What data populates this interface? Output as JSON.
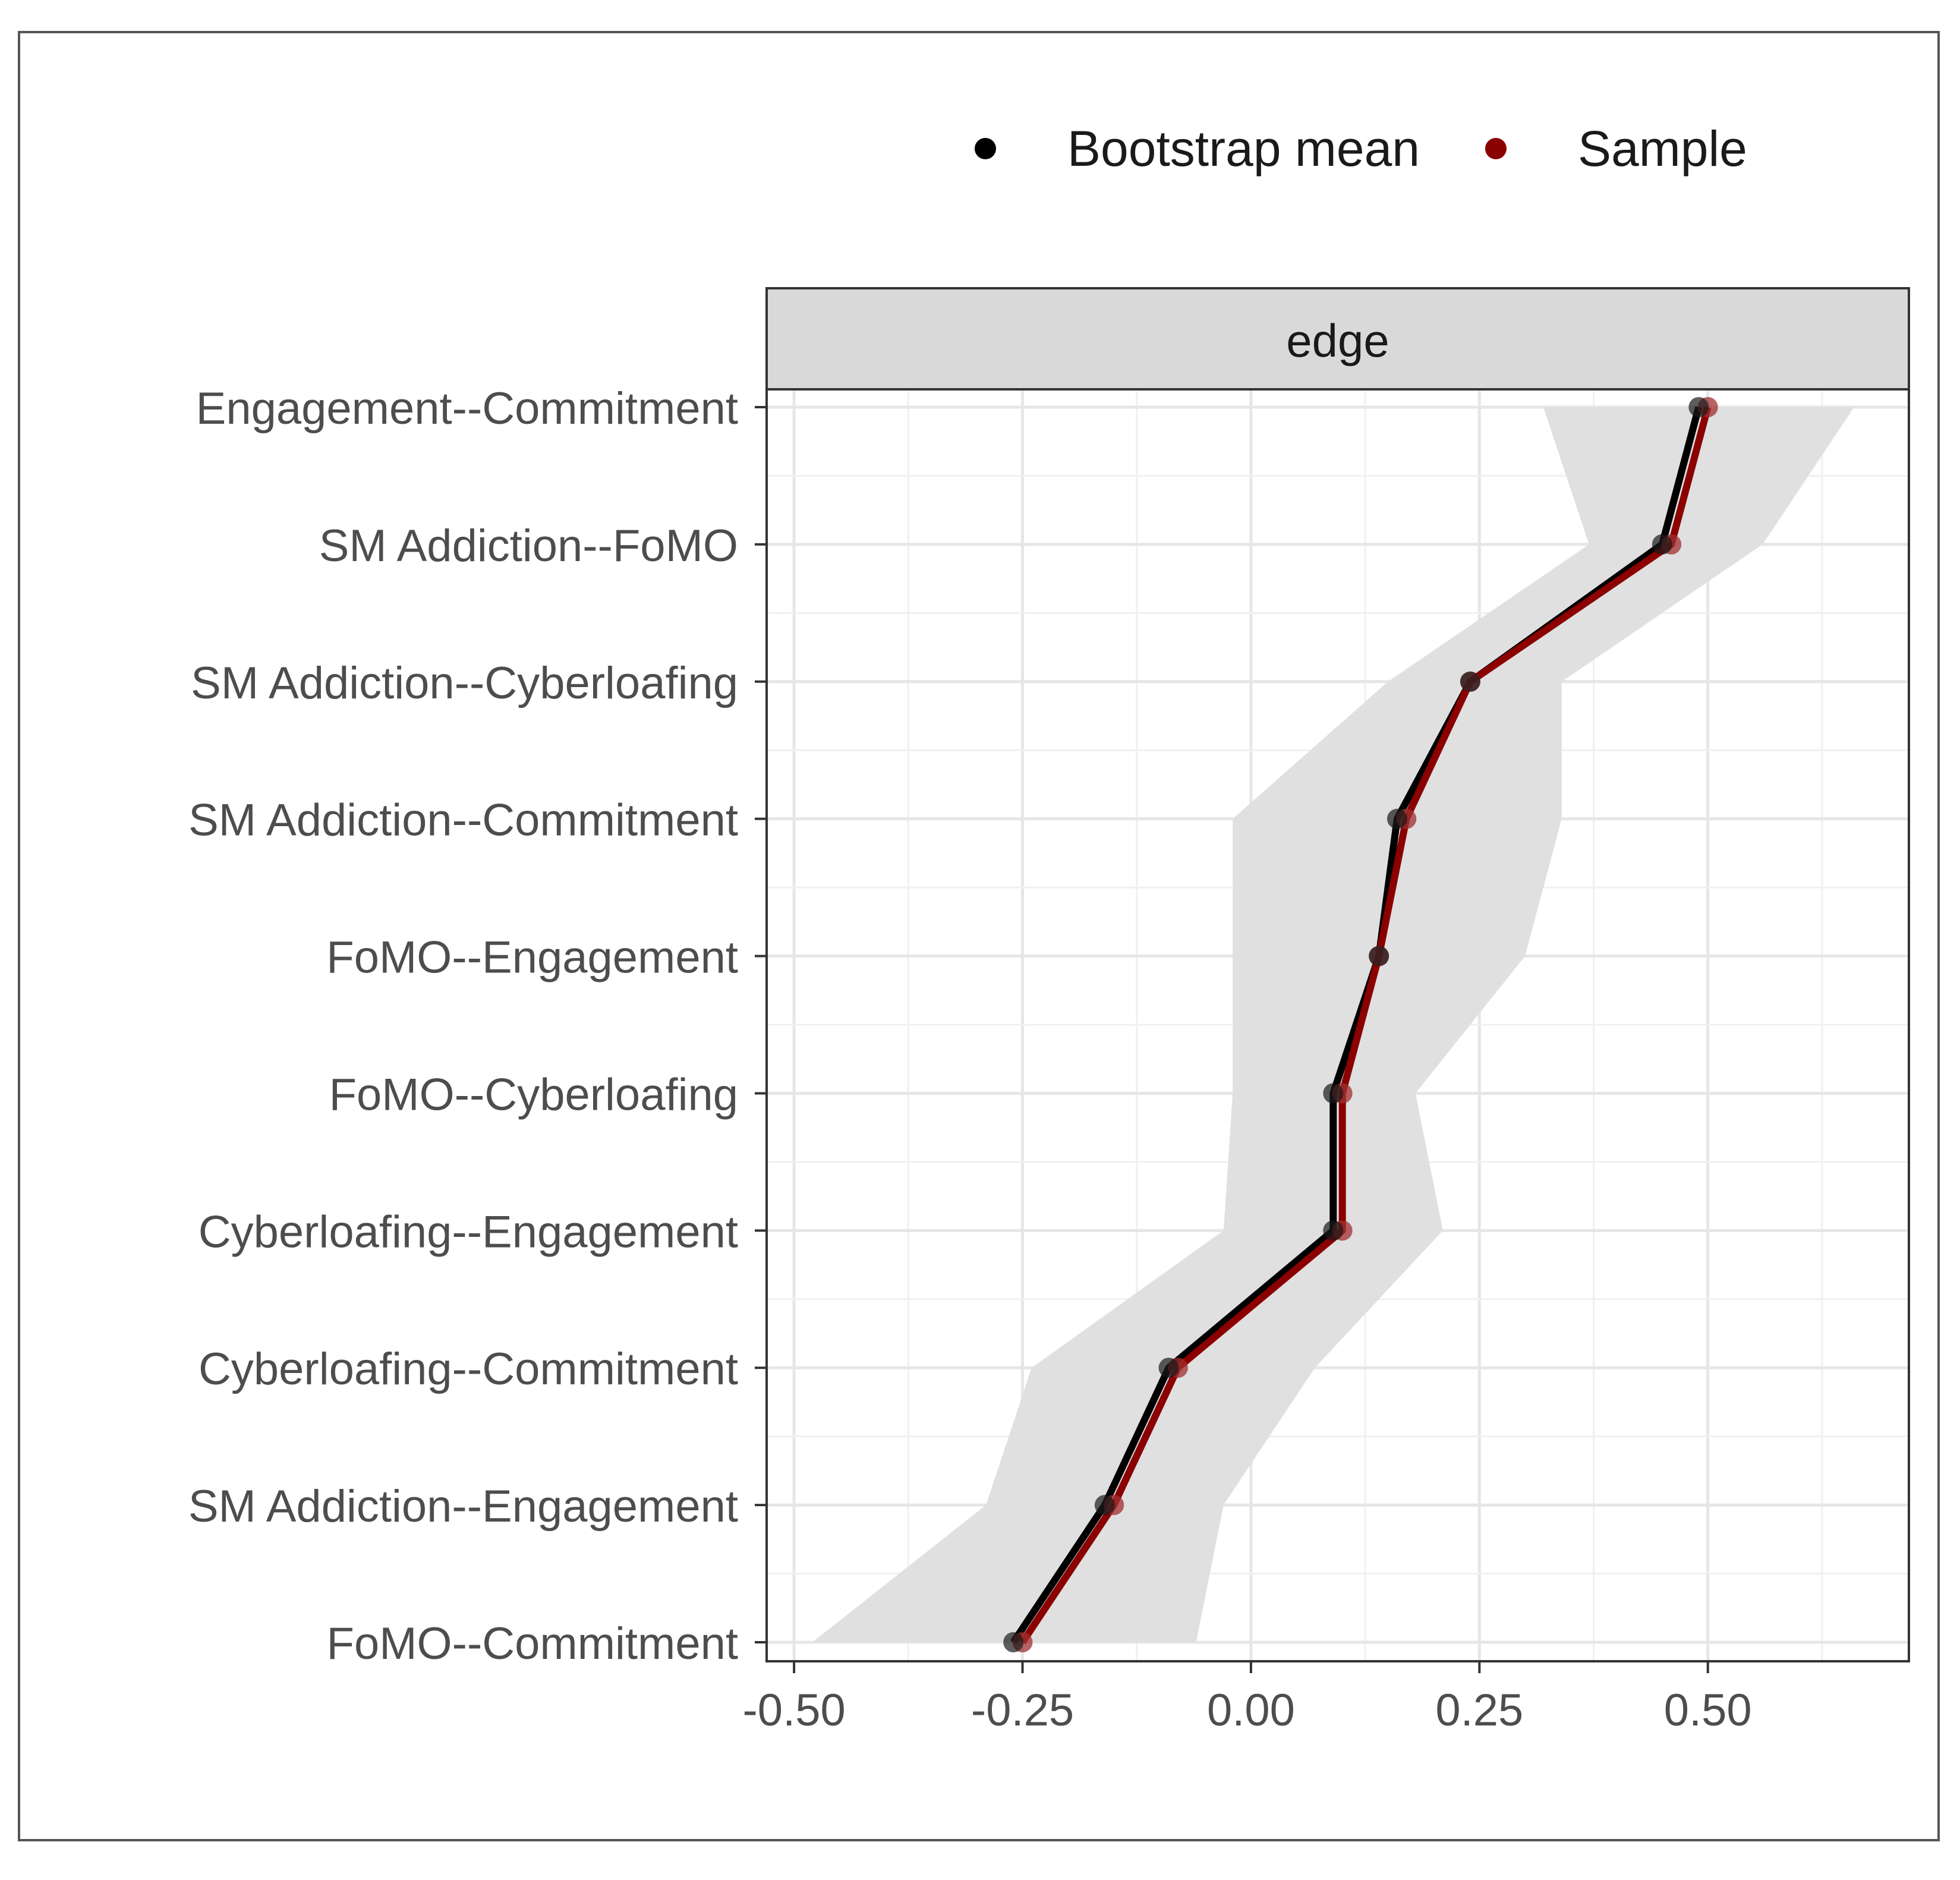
{
  "legend": {
    "items": [
      {
        "label": "Bootstrap mean",
        "color": "#000000"
      },
      {
        "label": "Sample",
        "color": "#8b0000"
      }
    ]
  },
  "chart_data": {
    "type": "line",
    "facet_label": "edge",
    "categories": [
      "Engagement--Commitment",
      "SM Addiction--FoMO",
      "SM Addiction--Cyberloafing",
      "SM Addiction--Commitment",
      "FoMO--Engagement",
      "FoMO--Cyberloafing",
      "Cyberloafing--Engagement",
      "Cyberloafing--Commitment",
      "SM Addiction--Engagement",
      "FoMO--Commitment"
    ],
    "series": [
      {
        "name": "Bootstrap mean",
        "color": "#000000",
        "values": [
          0.49,
          0.45,
          0.24,
          0.16,
          0.14,
          0.09,
          0.09,
          -0.09,
          -0.16,
          -0.26
        ]
      },
      {
        "name": "Sample",
        "color": "#8b0000",
        "values": [
          0.5,
          0.46,
          0.24,
          0.17,
          0.14,
          0.1,
          0.1,
          -0.08,
          -0.15,
          -0.25
        ]
      }
    ],
    "ci_band": {
      "lower": [
        0.32,
        0.37,
        0.15,
        -0.02,
        -0.02,
        -0.02,
        -0.03,
        -0.24,
        -0.29,
        -0.48
      ],
      "upper": [
        0.66,
        0.56,
        0.34,
        0.34,
        0.3,
        0.18,
        0.21,
        0.07,
        -0.03,
        -0.06
      ],
      "color": "#e0e0e0"
    },
    "xlim": [
      -0.53,
      0.72
    ],
    "xticks": [
      "-0.50",
      "-0.25",
      "0.00",
      "0.25",
      "0.50"
    ],
    "xtick_values": [
      -0.5,
      -0.25,
      0,
      0.25,
      0.5
    ],
    "xlabel": "",
    "ylabel": "",
    "grid": true
  }
}
